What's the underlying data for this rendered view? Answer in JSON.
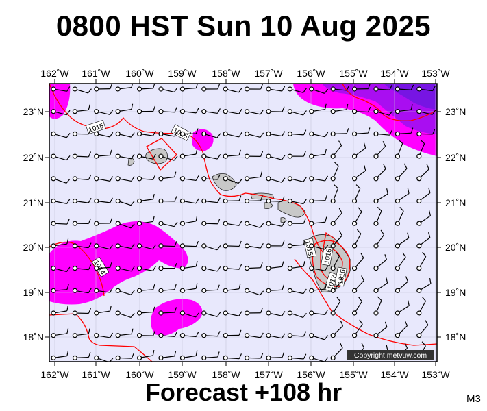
{
  "header": {
    "title": "0800 HST Sun 10 Aug 2025"
  },
  "footer": {
    "forecast": "Forecast +108 hr",
    "model": "M3"
  },
  "map": {
    "lon_labels": [
      "162˚W",
      "161˚W",
      "160˚W",
      "159˚W",
      "158˚W",
      "157˚W",
      "156˚W",
      "155˚W",
      "154˚W",
      "153˚W"
    ],
    "lat_labels": [
      "23˚N",
      "22˚N",
      "21˚N",
      "20˚N",
      "19˚N",
      "18˚N"
    ],
    "isobar_labels": [
      "1015",
      "1015",
      "1014",
      "1015",
      "1016",
      "1017",
      "1016"
    ],
    "copyright": "Copyright metvuw.com",
    "colors": {
      "background": "#e8e8fc",
      "rain_light": "#ff00ff",
      "rain_heavy": "#9a10ee",
      "isobar": "#ff0000",
      "land": "#c8c8c8"
    }
  }
}
